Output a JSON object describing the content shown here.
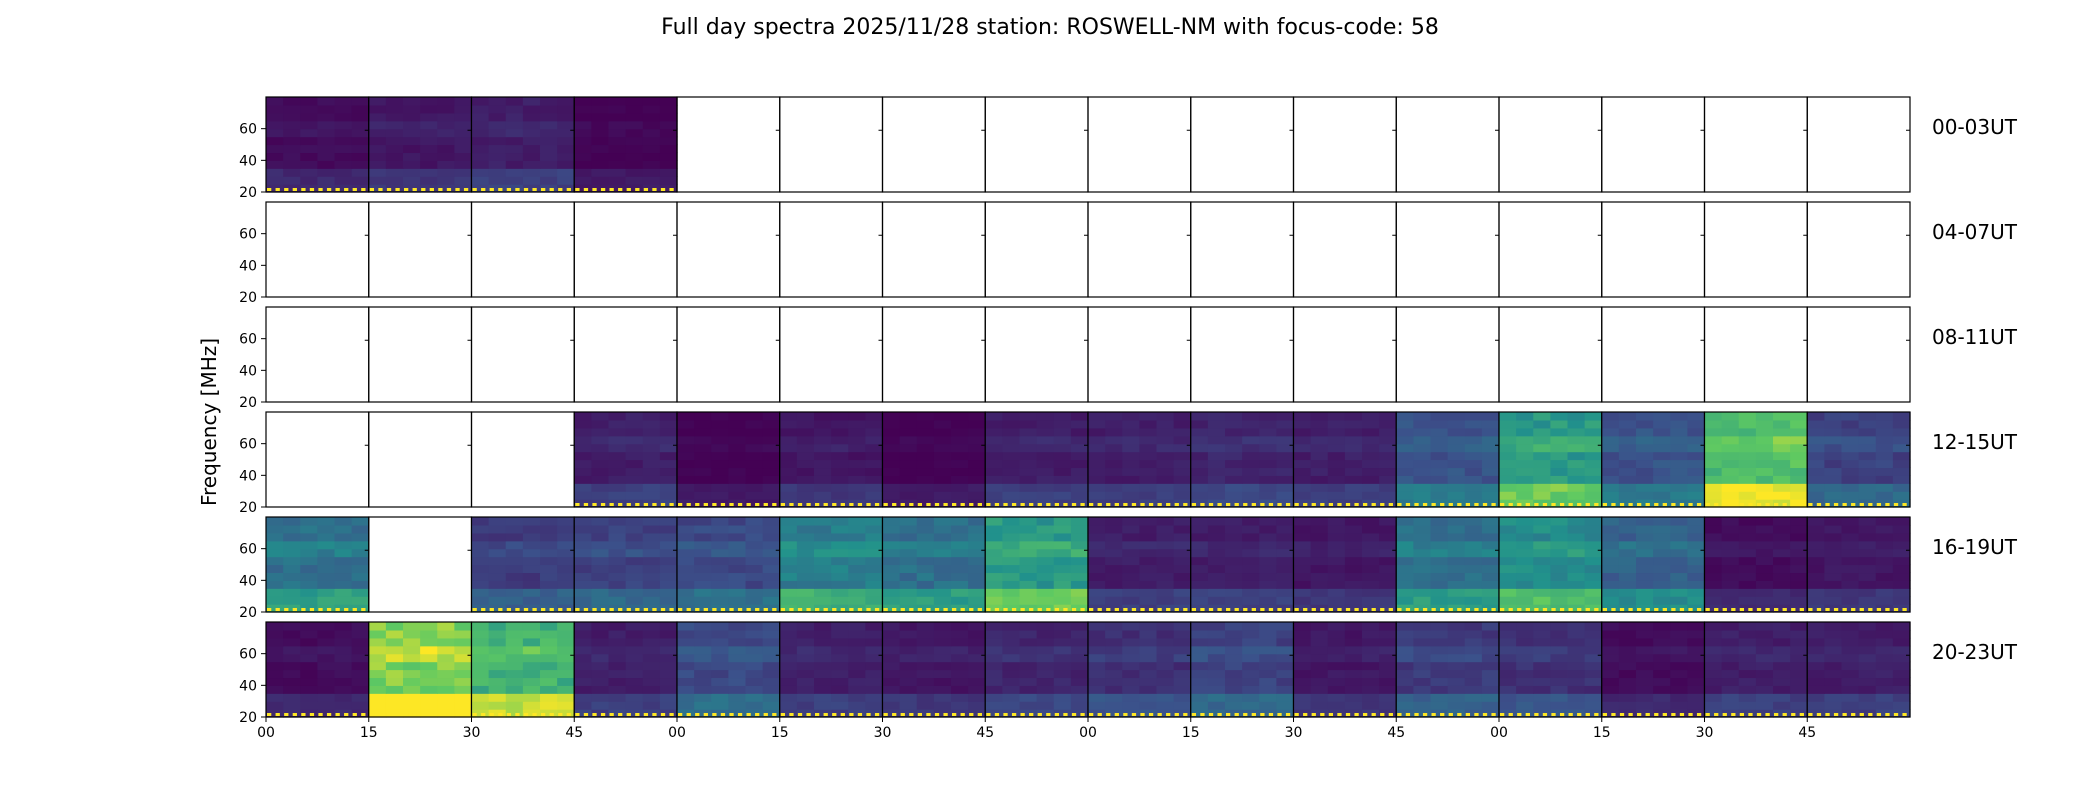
{
  "chart_data": {
    "type": "heatmap",
    "title": "Full day spectra 2025/11/28 station: ROSWELL-NM with focus-code: 58",
    "ylabel": "Frequency [MHz]",
    "xlabel": "",
    "y_ticks": [
      "20",
      "40",
      "60"
    ],
    "ylim": [
      20,
      80
    ],
    "x_ticks": [
      "00",
      "15",
      "30",
      "45",
      "00",
      "15",
      "30",
      "45",
      "00",
      "15",
      "30",
      "45",
      "00",
      "15",
      "30",
      "45"
    ],
    "rows": [
      "00-03UT",
      "04-07UT",
      "08-11UT",
      "12-15UT",
      "16-19UT",
      "20-23UT"
    ],
    "panels_per_row": 16,
    "panel_minutes": 15,
    "colormap": [
      "#440154",
      "#3b528b",
      "#21918c",
      "#5ec962",
      "#fde725"
    ],
    "intensity": [
      [
        0.25,
        0.28,
        0.3,
        0.22,
        null,
        null,
        null,
        null,
        null,
        null,
        null,
        null,
        null,
        null,
        null,
        null
      ],
      [
        null,
        null,
        null,
        null,
        null,
        null,
        null,
        null,
        null,
        null,
        null,
        null,
        null,
        null,
        null,
        null
      ],
      [
        null,
        null,
        null,
        null,
        null,
        null,
        null,
        null,
        null,
        null,
        null,
        null,
        null,
        null,
        null,
        null
      ],
      [
        null,
        null,
        null,
        0.3,
        0.22,
        0.28,
        0.22,
        0.3,
        0.3,
        0.32,
        0.3,
        0.45,
        0.7,
        0.45,
        0.85,
        0.4
      ],
      [
        0.55,
        null,
        0.38,
        0.4,
        0.42,
        0.6,
        0.55,
        0.7,
        0.3,
        0.3,
        0.28,
        0.55,
        0.65,
        0.5,
        0.25,
        0.28
      ],
      [
        0.25,
        0.95,
        0.8,
        0.3,
        0.42,
        0.3,
        0.28,
        0.32,
        0.35,
        0.4,
        0.28,
        0.38,
        0.35,
        0.25,
        0.3,
        0.3
      ]
    ]
  }
}
